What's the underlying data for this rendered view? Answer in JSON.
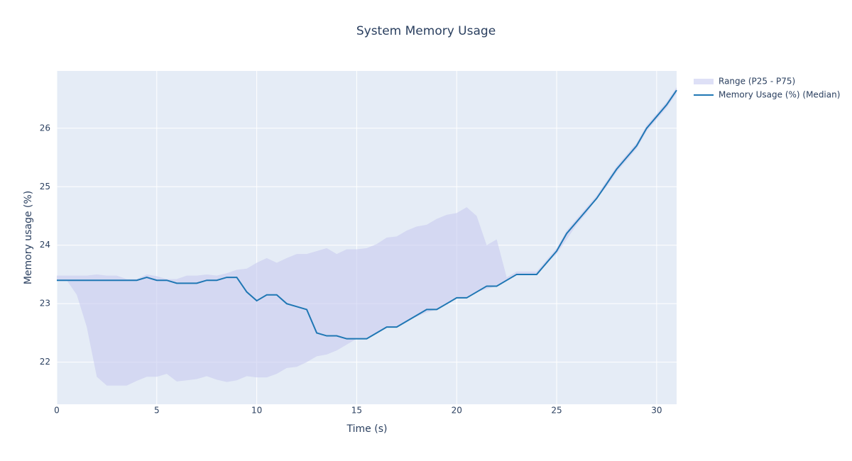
{
  "chart_data": {
    "type": "line",
    "title": "System Memory Usage",
    "x_label": "Time (s)",
    "y_label": "Memory usage (%)",
    "x": [
      0,
      0.5,
      1,
      1.5,
      2,
      2.5,
      3,
      3.5,
      4,
      4.5,
      5,
      5.5,
      6,
      6.5,
      7,
      7.5,
      8,
      8.5,
      9,
      9.5,
      10,
      10.5,
      11,
      11.5,
      12,
      12.5,
      13,
      13.5,
      14,
      14.5,
      15,
      15.5,
      16,
      16.5,
      17,
      17.5,
      18,
      18.5,
      19,
      19.5,
      20,
      20.5,
      21,
      21.5,
      22,
      22.5,
      23,
      23.5,
      24,
      24.5,
      25,
      25.5,
      26,
      26.5,
      27,
      27.5,
      28,
      28.5,
      29,
      29.5,
      30,
      30.5,
      31
    ],
    "series": [
      {
        "name": "Range (P25 - P75)",
        "color": "rgba(200,204,240,0.6)",
        "upper": [
          23.48,
          23.48,
          23.48,
          23.48,
          23.5,
          23.48,
          23.48,
          23.42,
          23.42,
          23.5,
          23.47,
          23.42,
          23.42,
          23.48,
          23.48,
          23.5,
          23.48,
          23.52,
          23.58,
          23.6,
          23.7,
          23.78,
          23.7,
          23.78,
          23.85,
          23.85,
          23.9,
          23.95,
          23.85,
          23.93,
          23.93,
          23.95,
          24.02,
          24.13,
          24.15,
          24.25,
          24.32,
          24.35,
          24.45,
          24.52,
          24.55,
          24.65,
          24.5,
          24.0,
          24.1,
          23.45,
          23.55,
          23.55,
          23.55,
          23.75,
          23.95,
          24.25,
          24.45,
          24.65,
          24.85,
          25.1,
          25.35,
          25.55,
          25.75,
          26.05,
          26.25,
          26.45,
          26.7
        ],
        "lower": [
          23.4,
          23.4,
          23.15,
          22.6,
          21.75,
          21.6,
          21.6,
          21.6,
          21.68,
          21.75,
          21.75,
          21.8,
          21.67,
          21.69,
          21.71,
          21.76,
          21.7,
          21.66,
          21.69,
          21.76,
          21.74,
          21.74,
          21.8,
          21.9,
          21.92,
          22.0,
          22.1,
          22.13,
          22.2,
          22.3,
          22.4,
          22.4,
          22.5,
          22.6,
          22.6,
          22.7,
          22.78,
          22.85,
          22.9,
          23.0,
          23.1,
          23.1,
          23.2,
          23.25,
          23.3,
          23.4,
          23.5,
          23.5,
          23.5,
          23.7,
          23.85,
          24.1,
          24.35,
          24.55,
          24.8,
          25.0,
          25.25,
          25.45,
          25.65,
          25.95,
          26.15,
          26.35,
          26.6
        ]
      },
      {
        "name": "Memory Usage (%) (Median)",
        "color": "#1f77b4",
        "values": [
          23.4,
          23.4,
          23.4,
          23.4,
          23.4,
          23.4,
          23.4,
          23.4,
          23.4,
          23.45,
          23.4,
          23.4,
          23.35,
          23.35,
          23.35,
          23.4,
          23.4,
          23.45,
          23.45,
          23.2,
          23.05,
          23.15,
          23.15,
          23.0,
          22.95,
          22.9,
          22.5,
          22.45,
          22.45,
          22.4,
          22.4,
          22.4,
          22.5,
          22.6,
          22.6,
          22.7,
          22.8,
          22.9,
          22.9,
          23.0,
          23.1,
          23.1,
          23.2,
          23.3,
          23.3,
          23.4,
          23.5,
          23.5,
          23.5,
          23.7,
          23.9,
          24.2,
          24.4,
          24.6,
          24.8,
          25.05,
          25.3,
          25.5,
          25.7,
          26.0,
          26.2,
          26.4,
          26.65
        ]
      }
    ],
    "xlim": [
      0,
      31
    ],
    "xticks": [
      0,
      5,
      10,
      15,
      20,
      25,
      30
    ],
    "ylim": [
      21.28,
      26.98
    ],
    "yticks": [
      22,
      23,
      24,
      25,
      26
    ],
    "grid": true,
    "legend": "right"
  }
}
